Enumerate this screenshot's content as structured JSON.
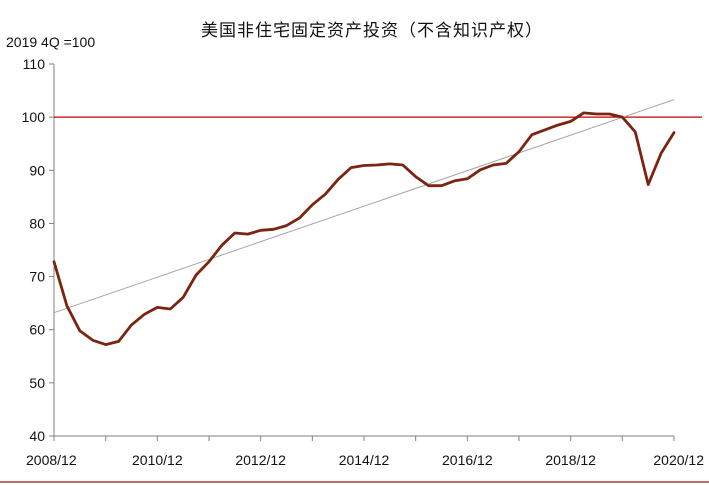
{
  "chart_data": {
    "type": "line",
    "title": "美国非住宅固定资产投资（不含知识产权）",
    "unit_label": "2019 4Q =100",
    "ylim": [
      40,
      110
    ],
    "yticks": [
      40,
      50,
      60,
      70,
      80,
      90,
      100,
      110
    ],
    "xlim": [
      2008.75,
      2020.75
    ],
    "xtick_labels": [
      {
        "x": 2008.75,
        "label": "2008/12"
      },
      {
        "x": 2010.75,
        "label": "2010/12"
      },
      {
        "x": 2012.75,
        "label": "2012/12"
      },
      {
        "x": 2014.75,
        "label": "2014/12"
      },
      {
        "x": 2016.75,
        "label": "2016/12"
      },
      {
        "x": 2018.75,
        "label": "2018/12"
      },
      {
        "x": 2020.75,
        "label": "2020/12"
      }
    ],
    "reference_line": {
      "y": 100,
      "color": "#c00000"
    },
    "trend_line": {
      "from": [
        2008.75,
        63.2
      ],
      "to": [
        2020.75,
        103.3
      ],
      "color": "#a6a6a6"
    },
    "series_color": "#7b2410",
    "x": [
      2008.75,
      2009.0,
      2009.25,
      2009.5,
      2009.75,
      2010.0,
      2010.25,
      2010.5,
      2010.75,
      2011.0,
      2011.25,
      2011.5,
      2011.75,
      2012.0,
      2012.25,
      2012.5,
      2012.75,
      2013.0,
      2013.25,
      2013.5,
      2013.75,
      2014.0,
      2014.25,
      2014.5,
      2014.75,
      2015.0,
      2015.25,
      2015.5,
      2015.75,
      2016.0,
      2016.25,
      2016.5,
      2016.75,
      2017.0,
      2017.25,
      2017.5,
      2017.75,
      2018.0,
      2018.25,
      2018.5,
      2018.75,
      2019.0,
      2019.25,
      2019.5,
      2019.75,
      2020.0,
      2020.25,
      2020.5,
      2020.75
    ],
    "series": [
      {
        "values": [
          72.8,
          64.5,
          59.8,
          58.0,
          57.2,
          57.8,
          60.9,
          62.9,
          64.2,
          63.9,
          66.1,
          70.3,
          72.8,
          75.9,
          78.2,
          78.0,
          78.7,
          78.9,
          79.6,
          81.0,
          83.5,
          85.5,
          88.3,
          90.5,
          90.9,
          91.0,
          91.2,
          91.0,
          88.8,
          87.1,
          87.1,
          88.0,
          88.4,
          90.1,
          91.0,
          91.3,
          93.5,
          96.7,
          97.6,
          98.5,
          99.2,
          100.8,
          100.6,
          100.6,
          100.0,
          97.2,
          87.3,
          93.2,
          97.1
        ]
      }
    ]
  }
}
